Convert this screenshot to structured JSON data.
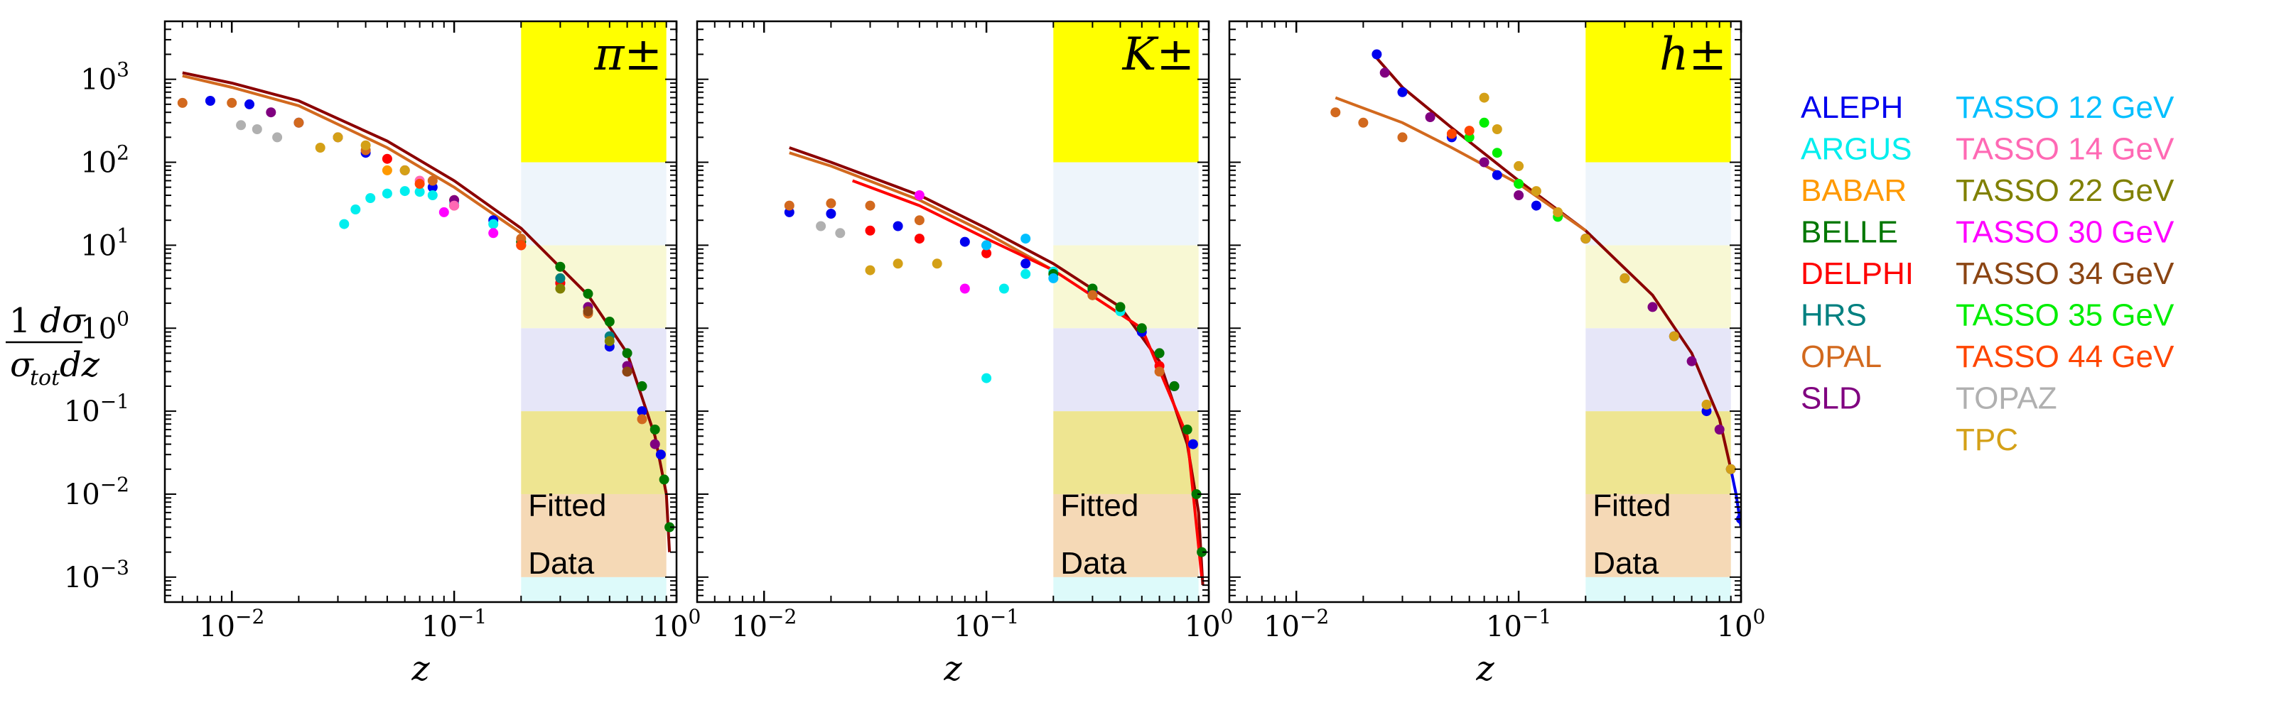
{
  "ylabel": {
    "numerator": "1",
    "numerator_right": "dσ",
    "denominator_left": "σ",
    "denominator_sub": "tot",
    "denominator_right": "dz"
  },
  "fitted_label": [
    "Fitted",
    "Data"
  ],
  "band_colors": [
    "#ddfafa",
    "#f5d9b6",
    "#eee591",
    "#e6e6f8",
    "#f8f8d4",
    "#eef5fb",
    "#ffff00"
  ],
  "chart_data": [
    {
      "type": "scatter",
      "title": "π±",
      "xlabel": "z",
      "ylabel": "1/σ_tot dσ/dz",
      "xscale": "log",
      "yscale": "log",
      "xlim": [
        0.005,
        1.0
      ],
      "ylim": [
        0.0005,
        5000
      ],
      "xticks": [
        {
          "v": 0.01,
          "b": "10",
          "e": "−2"
        },
        {
          "v": 0.1,
          "b": "10",
          "e": "−1"
        },
        {
          "v": 1,
          "b": "10",
          "e": "0"
        }
      ],
      "yticks": [
        {
          "v": 0.001,
          "b": "10",
          "e": "−3"
        },
        {
          "v": 0.01,
          "b": "10",
          "e": "−2"
        },
        {
          "v": 0.1,
          "b": "10",
          "e": "−1"
        },
        {
          "v": 1,
          "b": "10",
          "e": "0"
        },
        {
          "v": 10,
          "b": "10",
          "e": "1"
        },
        {
          "v": 100,
          "b": "10",
          "e": "2"
        },
        {
          "v": 1000,
          "b": "10",
          "e": "3"
        }
      ],
      "fitted_region_x": [
        0.2,
        0.9
      ],
      "series": [
        {
          "name": "ALEPH",
          "color": "#0000ee",
          "x": [
            0.008,
            0.012,
            0.02,
            0.04,
            0.08,
            0.15,
            0.3,
            0.5,
            0.7,
            0.85
          ],
          "y": [
            550,
            500,
            300,
            130,
            50,
            20,
            3.5,
            0.6,
            0.1,
            0.03
          ]
        },
        {
          "name": "ARGUS",
          "color": "#00eeee",
          "x": [
            0.032,
            0.036,
            0.042,
            0.05,
            0.06,
            0.07,
            0.08,
            0.1,
            0.15,
            0.2
          ],
          "y": [
            18,
            27,
            37,
            42,
            45,
            44,
            40,
            32,
            18,
            11
          ]
        },
        {
          "name": "BABAR",
          "color": "#ff9900",
          "x": [
            0.05,
            0.1,
            0.2,
            0.3
          ],
          "y": [
            80,
            35,
            11,
            4
          ]
        },
        {
          "name": "BELLE",
          "color": "#007700",
          "x": [
            0.2,
            0.3,
            0.4,
            0.5,
            0.6,
            0.7,
            0.8,
            0.88,
            0.93
          ],
          "y": [
            11,
            5.5,
            2.6,
            1.2,
            0.5,
            0.2,
            0.06,
            0.015,
            0.004
          ]
        },
        {
          "name": "DELPHI",
          "color": "#ff0000",
          "x": [
            0.05,
            0.1,
            0.3,
            0.6
          ],
          "y": [
            110,
            30,
            3.5,
            0.3
          ]
        },
        {
          "name": "HRS",
          "color": "#008080",
          "x": [
            0.3,
            0.5
          ],
          "y": [
            4,
            0.8
          ]
        },
        {
          "name": "OPAL",
          "color": "#d2691e",
          "x": [
            0.006,
            0.01,
            0.02,
            0.04,
            0.08,
            0.2,
            0.4,
            0.7
          ],
          "y": [
            520,
            520,
            300,
            140,
            60,
            12,
            1.5,
            0.08
          ]
        },
        {
          "name": "SLD",
          "color": "#800080",
          "x": [
            0.015,
            0.03,
            0.06,
            0.1,
            0.2,
            0.4,
            0.6,
            0.8
          ],
          "y": [
            400,
            200,
            80,
            35,
            10,
            1.8,
            0.35,
            0.04
          ]
        },
        {
          "name": "TASSO 14 GeV",
          "color": "#ff69b4",
          "x": [
            0.07,
            0.1
          ],
          "y": [
            60,
            30
          ]
        },
        {
          "name": "TASSO 22 GeV",
          "color": "#808000",
          "x": [
            0.3,
            0.5
          ],
          "y": [
            3,
            0.7
          ]
        },
        {
          "name": "TASSO 30 GeV",
          "color": "#ff00ff",
          "x": [
            0.09,
            0.15
          ],
          "y": [
            25,
            14
          ]
        },
        {
          "name": "TASSO 34 GeV",
          "color": "#8b4513",
          "x": [
            0.4,
            0.6
          ],
          "y": [
            1.6,
            0.3
          ]
        },
        {
          "name": "TASSO 44 GeV",
          "color": "#ff4500",
          "x": [
            0.07,
            0.2
          ],
          "y": [
            55,
            10
          ]
        },
        {
          "name": "TOPAZ",
          "color": "#b0b0b0",
          "x": [
            0.011,
            0.013,
            0.016
          ],
          "y": [
            280,
            250,
            200
          ]
        },
        {
          "name": "TPC",
          "color": "#d4a017",
          "x": [
            0.025,
            0.03,
            0.04,
            0.06
          ],
          "y": [
            150,
            200,
            160,
            80
          ]
        }
      ],
      "curves": [
        {
          "color": "#8b0000",
          "x": [
            0.006,
            0.01,
            0.02,
            0.05,
            0.1,
            0.2,
            0.4,
            0.6,
            0.8,
            0.9,
            0.93
          ],
          "y": [
            1200,
            900,
            550,
            180,
            60,
            16,
            2.5,
            0.5,
            0.05,
            0.01,
            0.002
          ]
        },
        {
          "color": "#d2691e",
          "x": [
            0.006,
            0.01,
            0.02,
            0.05,
            0.1,
            0.2
          ],
          "y": [
            1100,
            800,
            480,
            150,
            50,
            14
          ]
        }
      ]
    },
    {
      "type": "scatter",
      "title": "K±",
      "xlabel": "z",
      "ylabel": "1/σ_tot dσ/dz",
      "xscale": "log",
      "yscale": "log",
      "xlim": [
        0.005,
        1.0
      ],
      "ylim": [
        0.0005,
        5000
      ],
      "xticks": [
        {
          "v": 0.01,
          "b": "10",
          "e": "−2"
        },
        {
          "v": 0.1,
          "b": "10",
          "e": "−1"
        },
        {
          "v": 1,
          "b": "10",
          "e": "0"
        }
      ],
      "yticks": [],
      "fitted_region_x": [
        0.2,
        0.9
      ],
      "series": [
        {
          "name": "ALEPH",
          "color": "#0000ee",
          "x": [
            0.013,
            0.02,
            0.04,
            0.08,
            0.15,
            0.3,
            0.5,
            0.7,
            0.85
          ],
          "y": [
            25,
            24,
            17,
            11,
            6,
            2.8,
            0.9,
            0.2,
            0.04
          ]
        },
        {
          "name": "ARGUS",
          "color": "#00eeee",
          "x": [
            0.1,
            0.12,
            0.15,
            0.2,
            0.3,
            0.4
          ],
          "y": [
            0.25,
            3,
            4.5,
            4.8,
            3,
            1.6
          ]
        },
        {
          "name": "BELLE",
          "color": "#007700",
          "x": [
            0.2,
            0.3,
            0.4,
            0.5,
            0.6,
            0.7,
            0.8,
            0.88,
            0.93
          ],
          "y": [
            4.5,
            3,
            1.8,
            1,
            0.5,
            0.2,
            0.06,
            0.01,
            0.002
          ]
        },
        {
          "name": "DELPHI",
          "color": "#ff0000",
          "x": [
            0.03,
            0.05,
            0.1,
            0.3,
            0.6
          ],
          "y": [
            15,
            12,
            8,
            2.5,
            0.35
          ]
        },
        {
          "name": "OPAL",
          "color": "#d2691e",
          "x": [
            0.013,
            0.02,
            0.03,
            0.05,
            0.1,
            0.3,
            0.6
          ],
          "y": [
            30,
            32,
            30,
            20,
            10,
            2.5,
            0.3
          ]
        },
        {
          "name": "TASSO 12 GeV",
          "color": "#00bfff",
          "x": [
            0.1,
            0.15,
            0.2
          ],
          "y": [
            10,
            12,
            4
          ]
        },
        {
          "name": "TASSO 30 GeV",
          "color": "#ff00ff",
          "x": [
            0.05,
            0.08
          ],
          "y": [
            40,
            3
          ]
        },
        {
          "name": "TOPAZ",
          "color": "#b0b0b0",
          "x": [
            0.018,
            0.022
          ],
          "y": [
            17,
            14
          ]
        },
        {
          "name": "TPC",
          "color": "#d4a017",
          "x": [
            0.03,
            0.04,
            0.06
          ],
          "y": [
            5,
            6,
            6
          ]
        }
      ],
      "curves": [
        {
          "color": "#8b0000",
          "x": [
            0.013,
            0.02,
            0.05,
            0.1,
            0.2,
            0.4,
            0.6,
            0.8,
            0.9,
            0.94
          ],
          "y": [
            150,
            100,
            40,
            16,
            6,
            1.8,
            0.4,
            0.04,
            0.006,
            0.0008
          ]
        },
        {
          "color": "#d2691e",
          "x": [
            0.013,
            0.02,
            0.05,
            0.1,
            0.2
          ],
          "y": [
            130,
            90,
            35,
            14,
            5
          ]
        },
        {
          "color": "#ff0000",
          "x": [
            0.025,
            0.05,
            0.1,
            0.2,
            0.5,
            0.8,
            0.93
          ],
          "y": [
            60,
            30,
            12,
            5,
            1,
            0.05,
            0.001
          ]
        }
      ]
    },
    {
      "type": "scatter",
      "title": "h±",
      "xlabel": "z",
      "ylabel": "1/σ_tot dσ/dz",
      "xscale": "log",
      "yscale": "log",
      "xlim": [
        0.005,
        1.0
      ],
      "ylim": [
        0.0005,
        5000
      ],
      "xticks": [
        {
          "v": 0.01,
          "b": "10",
          "e": "−2"
        },
        {
          "v": 0.1,
          "b": "10",
          "e": "−1"
        },
        {
          "v": 1,
          "b": "10",
          "e": "0"
        }
      ],
      "yticks": [],
      "fitted_region_x": [
        0.2,
        0.9
      ],
      "series": [
        {
          "name": "ALEPH",
          "color": "#0000ee",
          "x": [
            0.023,
            0.03,
            0.05,
            0.08,
            0.12,
            0.2,
            0.3,
            0.5,
            0.7,
            0.9,
            1.0
          ],
          "y": [
            2000,
            700,
            200,
            70,
            30,
            12,
            4,
            0.8,
            0.1,
            0.02,
            0.005
          ]
        },
        {
          "name": "SLD",
          "color": "#800080",
          "x": [
            0.025,
            0.04,
            0.07,
            0.1,
            0.2,
            0.4,
            0.6,
            0.8
          ],
          "y": [
            1200,
            350,
            100,
            40,
            12,
            1.8,
            0.4,
            0.06
          ]
        },
        {
          "name": "OPAL",
          "color": "#d2691e",
          "x": [
            0.015,
            0.02,
            0.03
          ],
          "y": [
            400,
            300,
            200
          ]
        },
        {
          "name": "TASSO 35 GeV",
          "color": "#00ee00",
          "x": [
            0.06,
            0.07,
            0.08,
            0.1,
            0.15
          ],
          "y": [
            200,
            300,
            130,
            55,
            22
          ]
        },
        {
          "name": "TASSO 44 GeV",
          "color": "#ff4500",
          "x": [
            0.05,
            0.06
          ],
          "y": [
            220,
            240
          ]
        },
        {
          "name": "TPC",
          "color": "#d4a017",
          "x": [
            0.07,
            0.08,
            0.1,
            0.12,
            0.15,
            0.2,
            0.3,
            0.5,
            0.7,
            0.9
          ],
          "y": [
            600,
            250,
            90,
            45,
            25,
            12,
            4,
            0.8,
            0.12,
            0.02
          ]
        }
      ],
      "curves": [
        {
          "color": "#8b0000",
          "x": [
            0.023,
            0.03,
            0.05,
            0.1,
            0.2,
            0.4,
            0.6,
            0.8,
            0.9
          ],
          "y": [
            1800,
            800,
            260,
            60,
            15,
            2.5,
            0.5,
            0.08,
            0.02
          ]
        },
        {
          "color": "#d2691e",
          "x": [
            0.015,
            0.03,
            0.05,
            0.1,
            0.2
          ],
          "y": [
            600,
            300,
            150,
            55,
            15
          ]
        },
        {
          "color": "#0000ee",
          "x": [
            0.9,
            0.95,
            1.0
          ],
          "y": [
            0.02,
            0.01,
            0.004
          ]
        }
      ]
    }
  ],
  "legend": [
    {
      "label": "ALEPH",
      "color": "#0000ee"
    },
    {
      "label": "ARGUS",
      "color": "#00eeee"
    },
    {
      "label": "BABAR",
      "color": "#ff9900"
    },
    {
      "label": "BELLE",
      "color": "#007700"
    },
    {
      "label": "DELPHI",
      "color": "#ff0000"
    },
    {
      "label": "HRS",
      "color": "#008080"
    },
    {
      "label": "OPAL",
      "color": "#d2691e"
    },
    {
      "label": "SLD",
      "color": "#800080"
    },
    {
      "label": "TASSO 12 GeV",
      "color": "#00bfff"
    },
    {
      "label": "TASSO 14 GeV",
      "color": "#ff69b4"
    },
    {
      "label": "TASSO 22 GeV",
      "color": "#808000"
    },
    {
      "label": "TASSO 30 GeV",
      "color": "#ff00ff"
    },
    {
      "label": "TASSO 34 GeV",
      "color": "#8b4513"
    },
    {
      "label": "TASSO 35 GeV",
      "color": "#00ee00"
    },
    {
      "label": "TASSO 44 GeV",
      "color": "#ff4500"
    },
    {
      "label": "TOPAZ",
      "color": "#b0b0b0"
    },
    {
      "label": "TPC",
      "color": "#d4a017"
    }
  ]
}
